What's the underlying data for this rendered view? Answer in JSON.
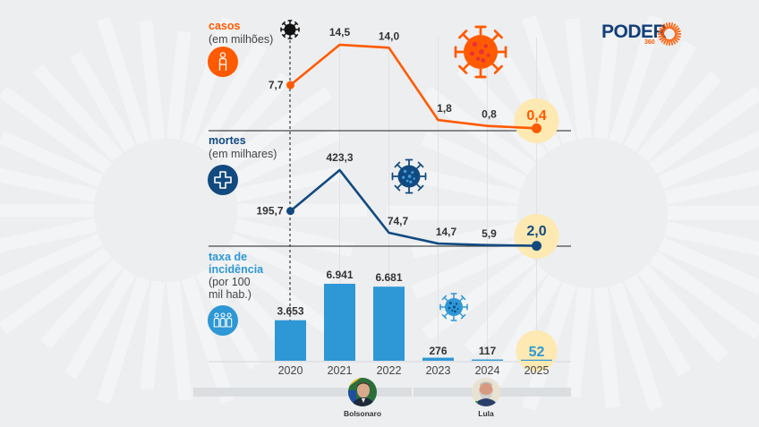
{
  "brand": {
    "name": "PODER",
    "sub": "360"
  },
  "colors": {
    "background": "#edeef0",
    "rays": "#f3f4f6",
    "casos": "#ff5a00",
    "mortes": "#124a80",
    "incidencia": "#2e97d6",
    "highlight": "#fde9b1",
    "text": "#333333",
    "brand_primary": "#143f7a",
    "brand_accent": "#ff5a00"
  },
  "sections": {
    "casos": {
      "title": "casos",
      "subtitle": "(em milhões)",
      "icon": "person-icon"
    },
    "mortes": {
      "title": "mortes",
      "subtitle": "(em milhares)",
      "icon": "medical-cross-icon"
    },
    "incidencia": {
      "title_line1": "taxa de",
      "title_line2": "incidência",
      "subtitle_line1": "(por 100",
      "subtitle_line2": "mil hab.)",
      "icon": "people-group-icon"
    }
  },
  "presidents": [
    {
      "name": "Bolsonaro",
      "years": [
        "2020",
        "2021",
        "2022"
      ]
    },
    {
      "name": "Lula",
      "years": [
        "2023",
        "2024",
        "2025"
      ]
    }
  ],
  "markers": {
    "pandemic_start_icon": "virus-icon",
    "pandemic_start_year": "2020"
  },
  "chart_data": [
    {
      "type": "line",
      "id": "casos",
      "title": "casos",
      "ylabel": "(em milhões)",
      "categories": [
        "2020",
        "2021",
        "2022",
        "2023",
        "2024",
        "2025"
      ],
      "values": [
        7.7,
        14.5,
        14.0,
        1.8,
        0.8,
        0.4
      ],
      "labels": [
        "7,7",
        "14,5",
        "14,0",
        "1,8",
        "0,8",
        "0,4"
      ],
      "highlight_index": 5,
      "ylim": [
        0,
        14.5
      ]
    },
    {
      "type": "line",
      "id": "mortes",
      "title": "mortes",
      "ylabel": "(em milhares)",
      "categories": [
        "2020",
        "2021",
        "2022",
        "2023",
        "2024",
        "2025"
      ],
      "values": [
        195.7,
        423.3,
        74.7,
        14.7,
        5.9,
        2.0
      ],
      "labels": [
        "195,7",
        "423,3",
        "74,7",
        "14,7",
        "5,9",
        "2,0"
      ],
      "highlight_index": 5,
      "ylim": [
        0,
        423.3
      ]
    },
    {
      "type": "bar",
      "id": "incidencia",
      "title": "taxa de incidência",
      "ylabel": "(por 100 mil hab.)",
      "categories": [
        "2020",
        "2021",
        "2022",
        "2023",
        "2024",
        "2025"
      ],
      "values": [
        3653,
        6941,
        6681,
        276,
        117,
        52
      ],
      "labels": [
        "3.653",
        "6.941",
        "6.681",
        "276",
        "117",
        "52"
      ],
      "highlight_index": 5,
      "ylim": [
        0,
        6941
      ]
    }
  ]
}
